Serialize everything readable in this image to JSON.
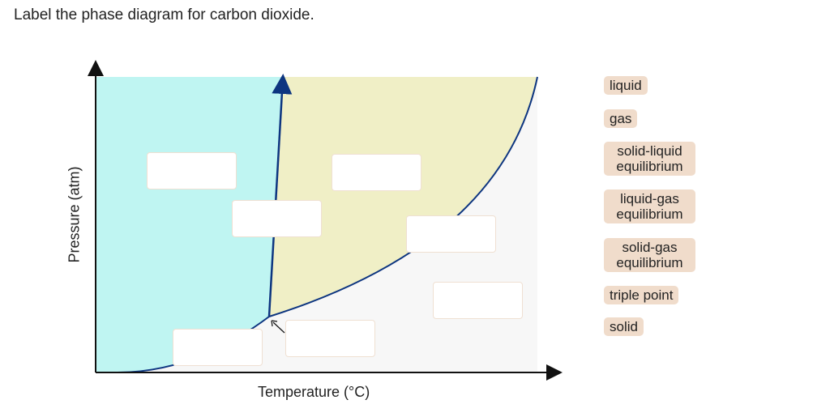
{
  "question": "Label the phase diagram for carbon dioxide.",
  "diagram": {
    "xlabel": "Temperature (°C)",
    "ylabel": "Pressure (atm)",
    "colors": {
      "solid_region": "#bff5f2",
      "liquid_region": "#f0efc6",
      "gas_region": "#f7f7f7",
      "curves": "#0d3580"
    },
    "drop_targets": 7
  },
  "labels": [
    "liquid",
    "gas",
    "solid-liquid equilibrium",
    "liquid-gas equilibrium",
    "solid-gas equilibrium",
    "triple point",
    "solid"
  ]
}
